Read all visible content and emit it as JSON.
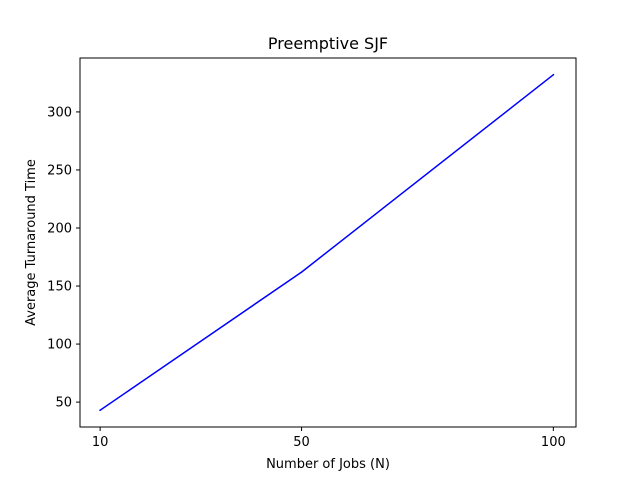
{
  "chart_data": {
    "type": "line",
    "title": "Preemptive SJF",
    "xlabel": "Number of Jobs (N)",
    "ylabel": "Average Turnaround Time",
    "x": [
      10,
      50,
      100
    ],
    "series": [
      {
        "values": [
          43,
          162,
          332
        ]
      }
    ],
    "xlim": [
      6.0,
      104.5
    ],
    "ylim": [
      28.55,
      346.45
    ],
    "xticks": [
      10,
      50,
      100
    ],
    "yticks": [
      50,
      100,
      150,
      200,
      250,
      300
    ],
    "xtick_labels": [
      "10",
      "50",
      "100"
    ],
    "ytick_labels": [
      "50",
      "100",
      "150",
      "200",
      "250",
      "300"
    ],
    "grid": false,
    "line_color": "#0000ff"
  }
}
